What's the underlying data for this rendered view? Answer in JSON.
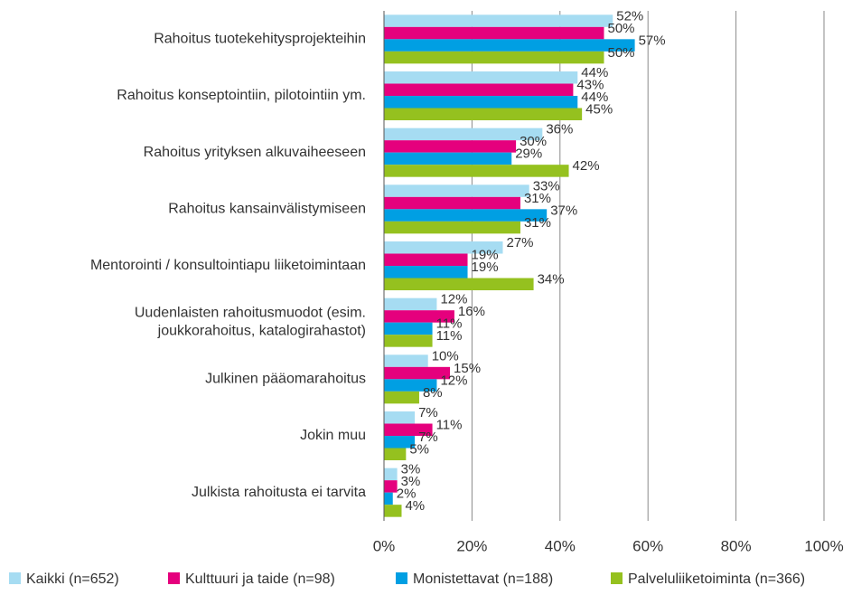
{
  "chart_data": {
    "type": "hbar",
    "categories": [
      "Rahoitus tuotekehitysprojekteihin",
      "Rahoitus konseptointiin, pilotointiin ym.",
      "Rahoitus yrityksen alkuvaiheeseen",
      "Rahoitus kansainvälistymiseen",
      "Mentorointi / konsultointiapu liiketoimintaan",
      "Uudenlaisten rahoitusmuodot (esim.\njoukkorahoitus, katalogirahastot)",
      "Julkinen pääomarahoitus",
      "Jokin muu",
      "Julkista rahoitusta ei tarvita"
    ],
    "series": [
      {
        "name": "Kaikki (n=652)",
        "color": "#a6dcf2",
        "values": [
          52,
          44,
          36,
          33,
          27,
          12,
          10,
          7,
          3
        ],
        "value_labels": [
          "52%",
          "44%",
          "36%",
          "33%",
          "27%",
          "12%",
          "10%",
          "7%",
          "3%"
        ]
      },
      {
        "name": "Kulttuuri ja taide (n=98)",
        "color": "#e5007d",
        "values": [
          50,
          43,
          30,
          31,
          19,
          16,
          15,
          11,
          3
        ],
        "value_labels": [
          "50%",
          "43%",
          "30%",
          "31%",
          "19%",
          "16%",
          "15%",
          "11%",
          "3%"
        ]
      },
      {
        "name": "Monistettavat (n=188)",
        "color": "#009fe3",
        "values": [
          57,
          44,
          29,
          37,
          19,
          11,
          12,
          7,
          2
        ],
        "value_labels": [
          "57%",
          "44%",
          "29%",
          "37%",
          "19%",
          "11%",
          "12%",
          "7%",
          "2%"
        ]
      },
      {
        "name": "Palveluliiketoiminta (n=366)",
        "color": "#95c11f",
        "values": [
          50,
          45,
          42,
          31,
          34,
          11,
          8,
          5,
          4
        ],
        "value_labels": [
          "50%",
          "45%",
          "42%",
          "31%",
          "34%",
          "11%",
          "8%",
          "5%",
          "4%"
        ]
      }
    ],
    "xlim": [
      0,
      100
    ],
    "xticks": [
      {
        "value": 0,
        "label": "0%"
      },
      {
        "value": 20,
        "label": "20%"
      },
      {
        "value": 40,
        "label": "40%"
      },
      {
        "value": 60,
        "label": "60%"
      },
      {
        "value": 80,
        "label": "80%"
      },
      {
        "value": 100,
        "label": "100%"
      }
    ],
    "grid": true,
    "legend": "bottom"
  }
}
